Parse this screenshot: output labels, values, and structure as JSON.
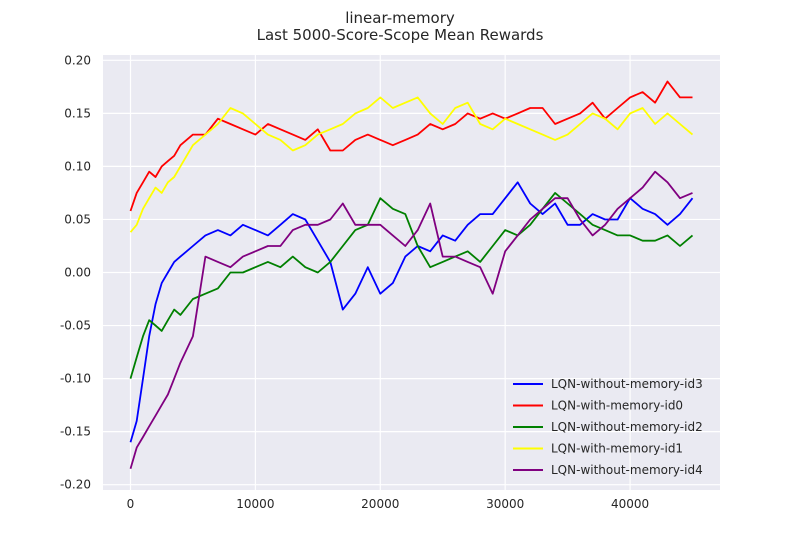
{
  "chart_data": {
    "type": "line",
    "title": "linear-memory",
    "subtitle": "Last 5000-Score-Scope Mean Rewards",
    "xlabel": "",
    "ylabel": "",
    "xlim": [
      -2200,
      47200
    ],
    "ylim": [
      -0.205,
      0.205
    ],
    "x_ticks": [
      0,
      10000,
      20000,
      30000,
      40000
    ],
    "y_ticks": [
      -0.2,
      -0.15,
      -0.1,
      -0.05,
      0.0,
      0.05,
      0.1,
      0.15,
      0.2
    ],
    "x_tick_labels": [
      "0",
      "10000",
      "20000",
      "30000",
      "40000"
    ],
    "y_tick_labels": [
      "-0.20",
      "-0.15",
      "-0.10",
      "-0.05",
      "0.00",
      "0.05",
      "0.10",
      "0.15",
      "0.20"
    ],
    "grid": true,
    "legend_position": "lower-right",
    "background": "#EAEAF2",
    "x": [
      0,
      500,
      1000,
      1500,
      2000,
      2500,
      3000,
      3500,
      4000,
      5000,
      6000,
      7000,
      8000,
      9000,
      10000,
      11000,
      12000,
      13000,
      14000,
      15000,
      16000,
      17000,
      18000,
      19000,
      20000,
      21000,
      22000,
      23000,
      24000,
      25000,
      26000,
      27000,
      28000,
      29000,
      30000,
      31000,
      32000,
      33000,
      34000,
      35000,
      36000,
      37000,
      38000,
      39000,
      40000,
      41000,
      42000,
      43000,
      44000,
      45000
    ],
    "series": [
      {
        "name": "LQN-without-memory-id3",
        "color": "#0000FF",
        "values": [
          -0.16,
          -0.14,
          -0.1,
          -0.06,
          -0.03,
          -0.01,
          0.0,
          0.01,
          0.015,
          0.025,
          0.035,
          0.04,
          0.035,
          0.045,
          0.04,
          0.035,
          0.045,
          0.055,
          0.05,
          0.03,
          0.01,
          -0.035,
          -0.02,
          0.005,
          -0.02,
          -0.01,
          0.015,
          0.025,
          0.02,
          0.035,
          0.03,
          0.045,
          0.055,
          0.055,
          0.07,
          0.085,
          0.065,
          0.055,
          0.065,
          0.045,
          0.045,
          0.055,
          0.05,
          0.05,
          0.07,
          0.06,
          0.055,
          0.045,
          0.055,
          0.07
        ]
      },
      {
        "name": "LQN-with-memory-id0",
        "color": "#FF0000",
        "values": [
          0.058,
          0.075,
          0.085,
          0.095,
          0.09,
          0.1,
          0.105,
          0.11,
          0.12,
          0.13,
          0.13,
          0.145,
          0.14,
          0.135,
          0.13,
          0.14,
          0.135,
          0.13,
          0.125,
          0.135,
          0.115,
          0.115,
          0.125,
          0.13,
          0.125,
          0.12,
          0.125,
          0.13,
          0.14,
          0.135,
          0.14,
          0.15,
          0.145,
          0.15,
          0.145,
          0.15,
          0.155,
          0.155,
          0.14,
          0.145,
          0.15,
          0.16,
          0.145,
          0.155,
          0.165,
          0.17,
          0.16,
          0.18,
          0.165,
          0.165
        ]
      },
      {
        "name": "LQN-without-memory-id2",
        "color": "#008000",
        "values": [
          -0.1,
          -0.08,
          -0.06,
          -0.045,
          -0.05,
          -0.055,
          -0.045,
          -0.035,
          -0.04,
          -0.025,
          -0.02,
          -0.015,
          0.0,
          0.0,
          0.005,
          0.01,
          0.005,
          0.015,
          0.005,
          0.0,
          0.01,
          0.025,
          0.04,
          0.045,
          0.07,
          0.06,
          0.055,
          0.025,
          0.005,
          0.01,
          0.015,
          0.02,
          0.01,
          0.025,
          0.04,
          0.035,
          0.045,
          0.06,
          0.075,
          0.065,
          0.055,
          0.045,
          0.04,
          0.035,
          0.035,
          0.03,
          0.03,
          0.035,
          0.025,
          0.035
        ]
      },
      {
        "name": "LQN-with-memory-id1",
        "color": "#FFFF00",
        "values": [
          0.038,
          0.045,
          0.06,
          0.07,
          0.08,
          0.075,
          0.085,
          0.09,
          0.1,
          0.12,
          0.13,
          0.14,
          0.155,
          0.15,
          0.14,
          0.13,
          0.125,
          0.115,
          0.12,
          0.13,
          0.135,
          0.14,
          0.15,
          0.155,
          0.165,
          0.155,
          0.16,
          0.165,
          0.15,
          0.14,
          0.155,
          0.16,
          0.14,
          0.135,
          0.145,
          0.14,
          0.135,
          0.13,
          0.125,
          0.13,
          0.14,
          0.15,
          0.145,
          0.135,
          0.15,
          0.155,
          0.14,
          0.15,
          0.14,
          0.13
        ]
      },
      {
        "name": "LQN-without-memory-id4",
        "color": "#800080",
        "values": [
          -0.185,
          -0.165,
          -0.155,
          -0.145,
          -0.135,
          -0.125,
          -0.115,
          -0.1,
          -0.085,
          -0.06,
          0.015,
          0.01,
          0.005,
          0.015,
          0.02,
          0.025,
          0.025,
          0.04,
          0.045,
          0.045,
          0.05,
          0.065,
          0.045,
          0.045,
          0.045,
          0.035,
          0.025,
          0.04,
          0.065,
          0.015,
          0.015,
          0.01,
          0.005,
          -0.02,
          0.02,
          0.035,
          0.05,
          0.06,
          0.07,
          0.07,
          0.05,
          0.035,
          0.045,
          0.06,
          0.07,
          0.08,
          0.095,
          0.085,
          0.07,
          0.075
        ]
      }
    ]
  }
}
